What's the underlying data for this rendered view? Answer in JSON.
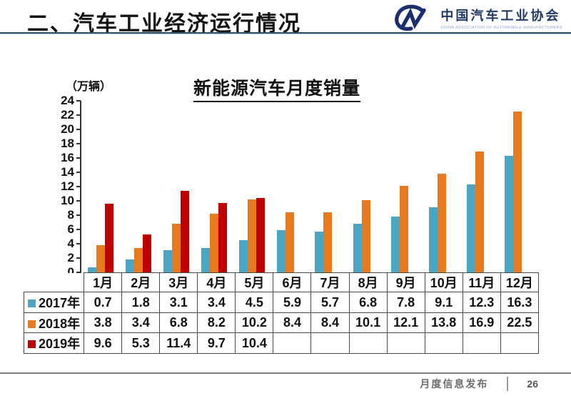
{
  "header": {
    "title": "二、汽车工业经济运行情况",
    "logo": {
      "org_cn": "中国汽车工业协会",
      "org_en": "CHINA ASSOCIATION OF AUTOMOBILE MANUFACTURERS"
    }
  },
  "chart_data": {
    "type": "bar",
    "title": "新能源汽车月度销量",
    "ylabel": "（万辆）",
    "ylim": [
      0,
      24
    ],
    "ytick_step": 2,
    "grid": false,
    "legend_position": "table-left",
    "categories": [
      "1月",
      "2月",
      "3月",
      "4月",
      "5月",
      "6月",
      "7月",
      "8月",
      "9月",
      "10月",
      "11月",
      "12月"
    ],
    "series": [
      {
        "name": "2017年",
        "color": "#4BA6C4",
        "values": [
          0.7,
          1.8,
          3.1,
          3.4,
          4.5,
          5.9,
          5.7,
          6.8,
          7.8,
          9.1,
          12.3,
          16.3
        ]
      },
      {
        "name": "2018年",
        "color": "#E8791D",
        "values": [
          3.8,
          3.4,
          6.8,
          8.2,
          10.2,
          8.4,
          8.4,
          10.1,
          12.1,
          13.8,
          16.9,
          22.5
        ]
      },
      {
        "name": "2019年",
        "color": "#C00000",
        "values": [
          9.6,
          5.3,
          11.4,
          9.7,
          10.4,
          null,
          null,
          null,
          null,
          null,
          null,
          null
        ]
      }
    ]
  },
  "footer": {
    "label": "月度信息发布",
    "page": "26"
  }
}
